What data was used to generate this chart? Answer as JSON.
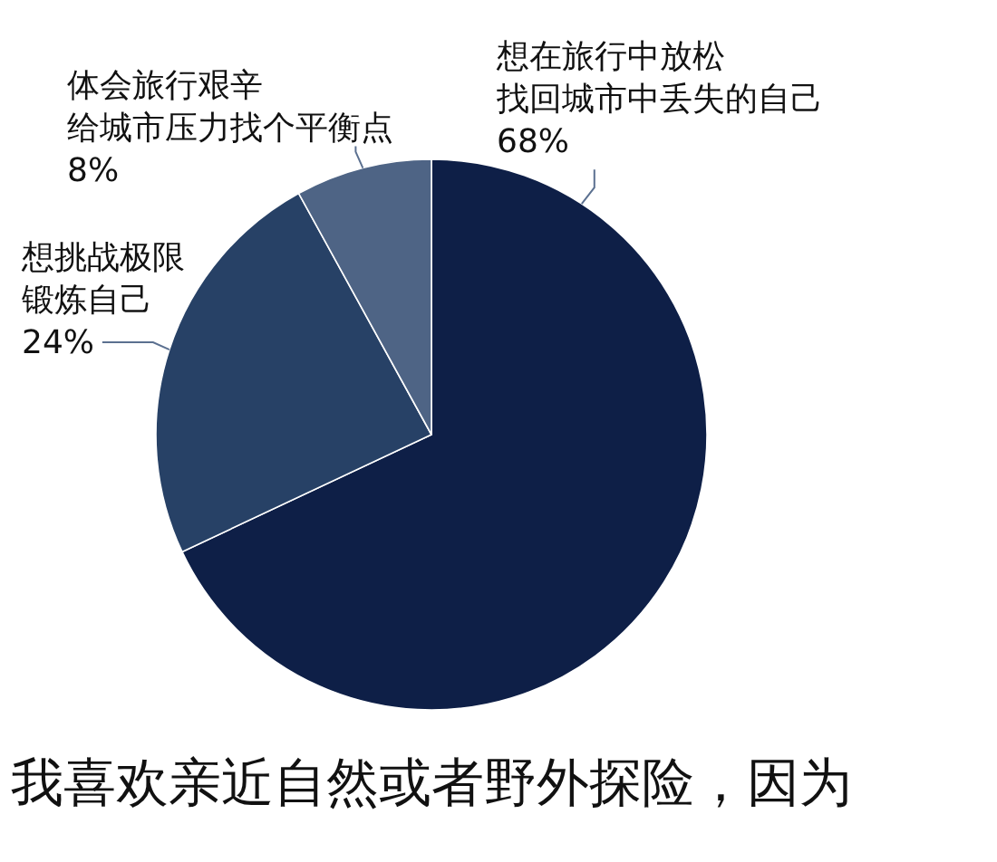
{
  "chart_data": {
    "type": "pie",
    "title": "我喜欢亲近自然或者野外探险，因为",
    "categories": [
      "想在旅行中放松找回城市中丢失的自己",
      "想挑战极限锻炼自己",
      "体会旅行艰辛给城市压力找个平衡点"
    ],
    "values": [
      68,
      24,
      8
    ],
    "value_labels": [
      "68%",
      "24%",
      "8%"
    ],
    "colors": [
      "#0e1f47",
      "#274166",
      "#4e6485"
    ],
    "legend": false
  }
}
